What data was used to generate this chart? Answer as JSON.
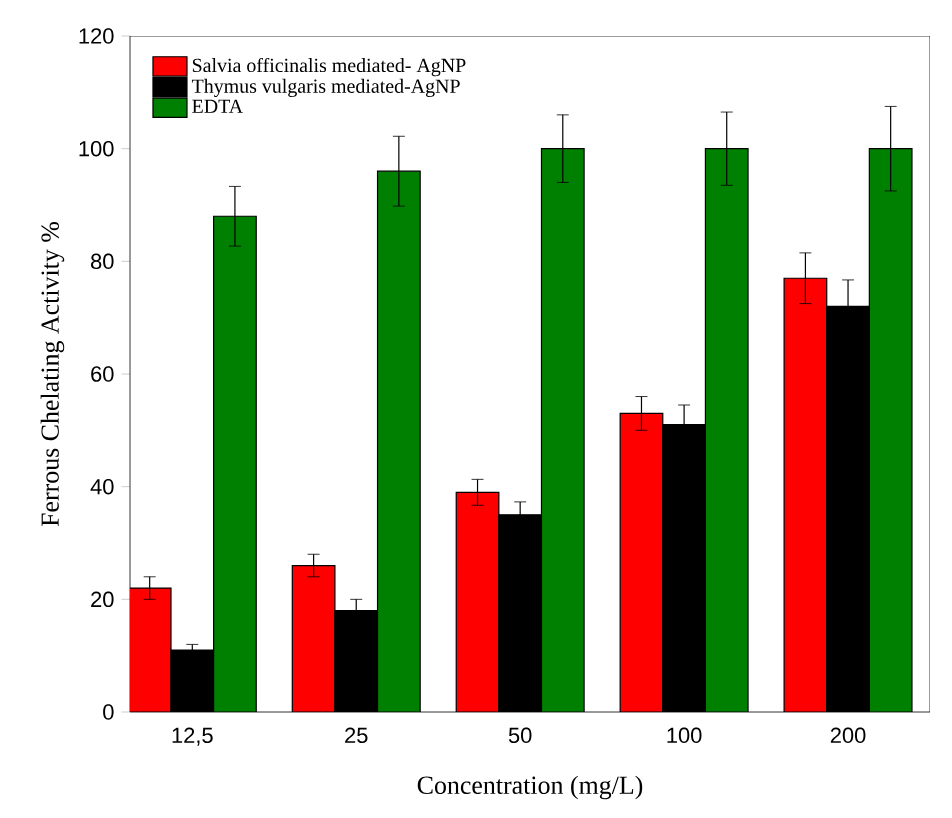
{
  "chart_data": {
    "type": "bar",
    "xlabel": "Concentration (mg/L)",
    "ylabel": "Ferrous Chelating Activity %",
    "categories": [
      "12,5",
      "25",
      "50",
      "100",
      "200"
    ],
    "series": [
      {
        "name": "Salvia officinalis mediated- AgNP",
        "color": "#ff0000",
        "values": [
          22,
          26,
          39,
          53,
          77
        ],
        "errors": [
          2,
          2,
          2.3,
          3,
          4.5
        ]
      },
      {
        "name": "Thymus vulgaris mediated-AgNP",
        "color": "#000000",
        "values": [
          11,
          18,
          35,
          51,
          72
        ],
        "errors": [
          1,
          2,
          2.3,
          3.5,
          4.7
        ]
      },
      {
        "name": "EDTA",
        "color": "#008000",
        "values": [
          88,
          96,
          100,
          100,
          100
        ],
        "errors": [
          5.3,
          6.2,
          6,
          6.5,
          7.5
        ]
      }
    ],
    "ylim": [
      0,
      120
    ],
    "yticks": [
      0,
      20,
      40,
      60,
      80,
      100,
      120
    ],
    "legend": "top left",
    "grid": false
  }
}
